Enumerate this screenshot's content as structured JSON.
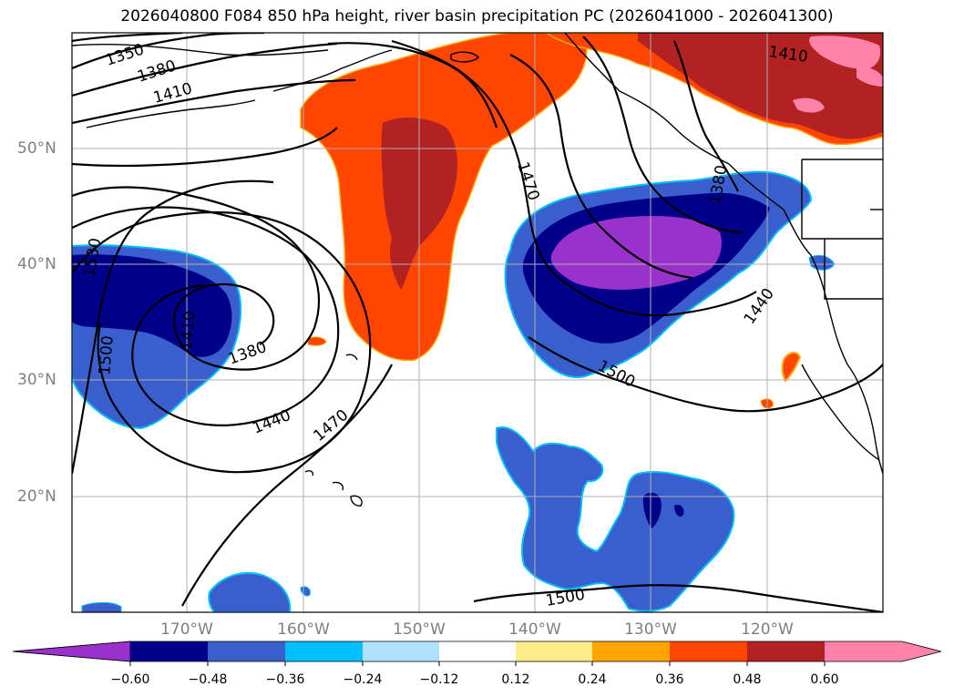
{
  "title": "2026040800 F084 850 hPa height, river basin precipitation PC (2026041000 - 2026041300)",
  "lat_labels": [
    "50°N",
    "40°N",
    "30°N",
    "20°N"
  ],
  "lon_labels": [
    "170°W",
    "160°W",
    "150°W",
    "140°W",
    "130°W",
    "120°W"
  ],
  "contour_labels": [
    "1350",
    "1380",
    "1410",
    "1410",
    "1380",
    "1410",
    "1440",
    "1470",
    "1500",
    "1530",
    "1470",
    "1500",
    "1440",
    "1380",
    "1500"
  ],
  "colorbar": {
    "colors": [
      "#9932cc",
      "#00008b",
      "#3a5fcd",
      "#00bfff",
      "#b0e2ff",
      "#ffffff",
      "#ffec8b",
      "#ffa500",
      "#ff4500",
      "#b22222",
      "#ff82ab"
    ],
    "ticks": [
      "−0.60",
      "−0.48",
      "−0.36",
      "−0.24",
      "−0.12",
      "0.12",
      "0.24",
      "0.36",
      "0.48",
      "0.60"
    ]
  },
  "colors": {
    "negative_strong": "#9932cc",
    "negative": "#00008b",
    "negative_mid": "#3a5fcd",
    "positive": "#ff4500",
    "positive_strong": "#b22222",
    "positive_max": "#ff82ab"
  }
}
